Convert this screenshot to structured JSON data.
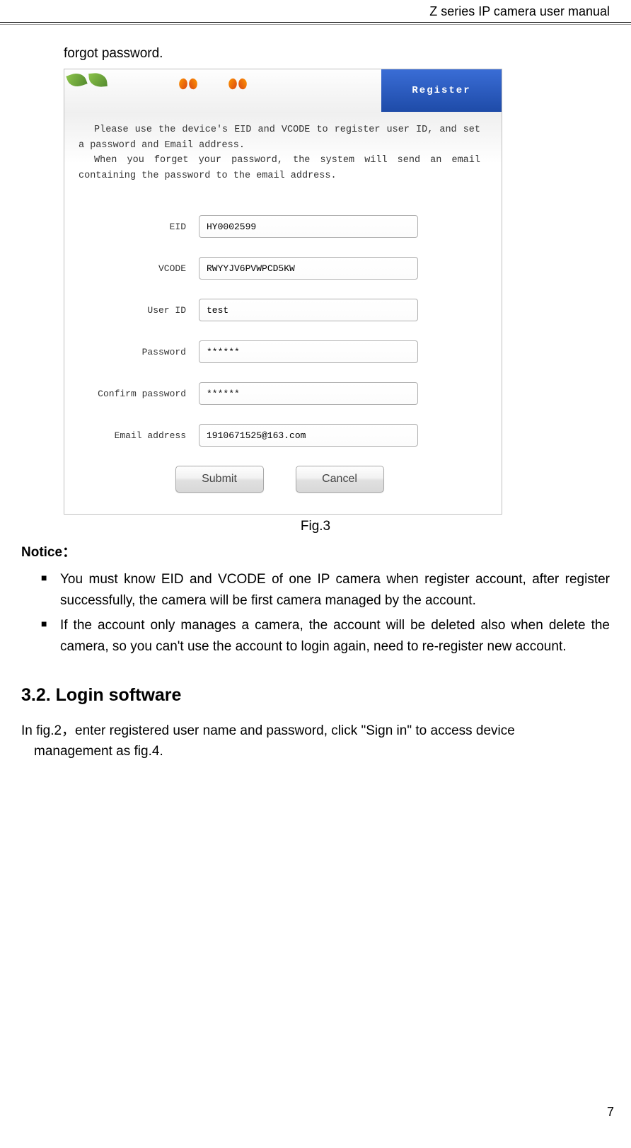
{
  "header": {
    "title": "Z series IP camera user manual"
  },
  "page": {
    "forgot_line": "forgot password.",
    "fig_caption": "Fig.3",
    "notice_title": "Notice：",
    "bullets": [
      "You must know EID and VCODE of one IP camera when register account, after register successfully, the camera will be first camera managed by the account.",
      "If the account only manages a camera, the account will be deleted also when delete the camera, so you can't use the account to login again, need to re-register new account."
    ],
    "section_heading": "3.2.  Login software",
    "login_para_1": "In fig.2，enter registered user name and password, click \"Sign in\" to access device",
    "login_para_2": "management as fig.4.",
    "page_number": "7"
  },
  "register_dialog": {
    "banner_label": "Register",
    "instruction_p1": "Please use the device's EID and VCODE to register user ID, and set a password and Email address.",
    "instruction_p2": "When you forget your password, the system will send an email containing the password to the email address.",
    "fields": {
      "eid": {
        "label": "EID",
        "value": "HY0002599"
      },
      "vcode": {
        "label": "VCODE",
        "value": "RWYYJV6PVWPCD5KW"
      },
      "user_id": {
        "label": "User ID",
        "value": "test"
      },
      "password": {
        "label": "Password",
        "value": "******"
      },
      "confirm_password": {
        "label": "Confirm password",
        "value": "******"
      },
      "email": {
        "label": "Email address",
        "value": "1910671525@163.com"
      }
    },
    "buttons": {
      "submit": "Submit",
      "cancel": "Cancel"
    }
  },
  "colors": {
    "banner_blue_top": "#3a6dd6",
    "banner_blue_bottom": "#1e4ba8",
    "btn_gradient_top": "#fefefe",
    "btn_gradient_bottom": "#d8d8d8",
    "border_gray": "#c0c0c0"
  }
}
